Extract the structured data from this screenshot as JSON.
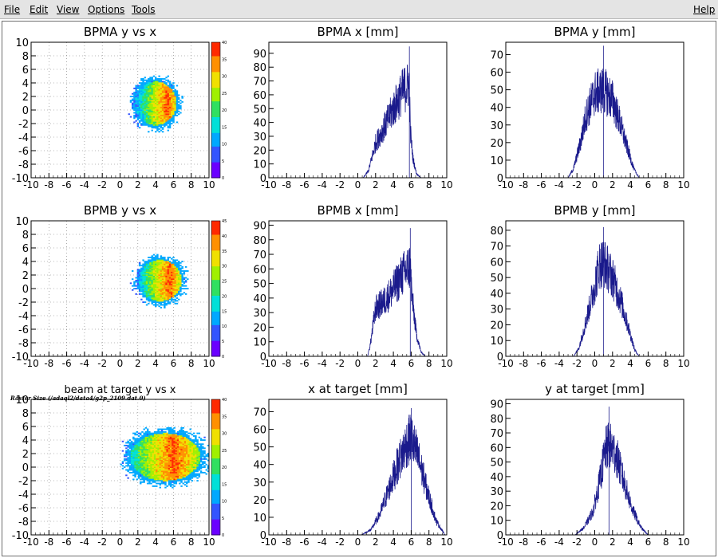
{
  "menu": {
    "items": [
      {
        "id": "file",
        "label": "File"
      },
      {
        "id": "edit",
        "label": "Edit"
      },
      {
        "id": "view",
        "label": "View"
      },
      {
        "id": "options",
        "label": "Options"
      },
      {
        "id": "tools",
        "label": "Tools"
      }
    ],
    "help": "Help"
  },
  "caption": "Raster Size (/adaql2/data4/g2p_2109.dat.0)",
  "colors": {
    "hist_line": "#1a1a8c",
    "palette": [
      "#6a00ff",
      "#3355ff",
      "#00a8ff",
      "#00e0d8",
      "#30e060",
      "#a0f000",
      "#f0e000",
      "#ff9000",
      "#ff2a00"
    ]
  },
  "chart_data": [
    {
      "id": "bpma-yx",
      "type": "heatmap",
      "title": "BPMA y vs x",
      "xlim": [
        -10,
        10
      ],
      "ylim": [
        -10,
        10
      ],
      "xticks": [
        -10,
        -8,
        -6,
        -4,
        -2,
        0,
        2,
        4,
        6,
        8,
        10
      ],
      "yticks": [
        -10,
        -8,
        -6,
        -4,
        -2,
        0,
        2,
        4,
        6,
        8,
        10
      ],
      "grid": true,
      "blob": {
        "x_center": 3.9,
        "y_center": 0.9,
        "x_halfwidth": 2.6,
        "y_halfwidth": 3.6,
        "peak_x": 5.3
      },
      "zlim": [
        0,
        40
      ],
      "zticks": [
        0,
        5,
        10,
        15,
        20,
        25,
        30,
        35,
        40
      ]
    },
    {
      "id": "bpma-x",
      "type": "area",
      "title": "BPMA x [mm]",
      "xlim": [
        -10,
        10
      ],
      "ylim": [
        0,
        98
      ],
      "xticks": [
        -10,
        -8,
        -6,
        -4,
        -2,
        0,
        2,
        4,
        6,
        8,
        10
      ],
      "yticks": [
        0,
        10,
        20,
        30,
        40,
        50,
        60,
        70,
        80,
        90
      ],
      "grid": false,
      "x": [
        0.6,
        1.2,
        2,
        3,
        4,
        5,
        5.8,
        5.9,
        6.2,
        6.6,
        7.1
      ],
      "y": [
        0,
        5,
        25,
        37,
        50,
        62,
        68,
        34,
        14,
        3,
        0
      ],
      "peak": 95
    },
    {
      "id": "bpma-y",
      "type": "area",
      "title": "BPMA y [mm]",
      "xlim": [
        -10,
        10
      ],
      "ylim": [
        0,
        77
      ],
      "xticks": [
        -10,
        -8,
        -6,
        -4,
        -2,
        0,
        2,
        4,
        6,
        8,
        10
      ],
      "yticks": [
        0,
        10,
        20,
        30,
        40,
        50,
        60,
        70
      ],
      "grid": false,
      "x": [
        -3,
        -2.4,
        -1.6,
        -1,
        0,
        1,
        2,
        2.8,
        3.6,
        4.4,
        5
      ],
      "y": [
        0,
        5,
        20,
        35,
        48,
        50,
        44,
        32,
        18,
        5,
        0
      ],
      "peak": 75
    },
    {
      "id": "bpmb-yx",
      "type": "heatmap",
      "title": "BPMB y vs x",
      "xlim": [
        -10,
        10
      ],
      "ylim": [
        -10,
        10
      ],
      "xticks": [
        -10,
        -8,
        -6,
        -4,
        -2,
        0,
        2,
        4,
        6,
        8,
        10
      ],
      "yticks": [
        -10,
        -8,
        -6,
        -4,
        -2,
        0,
        2,
        4,
        6,
        8,
        10
      ],
      "grid": true,
      "blob": {
        "x_center": 4.4,
        "y_center": 1.1,
        "x_halfwidth": 2.7,
        "y_halfwidth": 3.4,
        "peak_x": 5.5
      },
      "zlim": [
        0,
        45
      ],
      "zticks": [
        0,
        5,
        10,
        15,
        20,
        25,
        30,
        35,
        40,
        45
      ]
    },
    {
      "id": "bpmb-x",
      "type": "area",
      "title": "BPMB x [mm]",
      "xlim": [
        -10,
        10
      ],
      "ylim": [
        0,
        93
      ],
      "xticks": [
        -10,
        -8,
        -6,
        -4,
        -2,
        0,
        2,
        4,
        6,
        8,
        10
      ],
      "yticks": [
        0,
        10,
        20,
        30,
        40,
        50,
        60,
        70,
        80,
        90
      ],
      "grid": false,
      "x": [
        1.1,
        1.4,
        2,
        3,
        4,
        5,
        5.9,
        6.1,
        6.6,
        7.1,
        7.6
      ],
      "y": [
        0,
        8,
        33,
        38,
        46,
        56,
        62,
        40,
        15,
        3,
        0
      ],
      "peak": 88
    },
    {
      "id": "bpmb-y",
      "type": "area",
      "title": "BPMB y [mm]",
      "xlim": [
        -10,
        10
      ],
      "ylim": [
        0,
        86
      ],
      "xticks": [
        -10,
        -8,
        -6,
        -4,
        -2,
        0,
        2,
        4,
        6,
        8,
        10
      ],
      "yticks": [
        0,
        10,
        20,
        30,
        40,
        50,
        60,
        70,
        80
      ],
      "grid": false,
      "x": [
        -2.4,
        -1.8,
        -1,
        0,
        0.5,
        1,
        2,
        3,
        3.8,
        4.5,
        5
      ],
      "y": [
        0,
        5,
        22,
        45,
        58,
        60,
        50,
        34,
        18,
        4,
        0
      ],
      "peak": 82
    },
    {
      "id": "target-yx",
      "type": "heatmap",
      "title": "beam at target y vs x",
      "xlim": [
        -10,
        10
      ],
      "ylim": [
        -10,
        10
      ],
      "xticks": [
        -10,
        -8,
        -6,
        -4,
        -2,
        0,
        2,
        4,
        6,
        8,
        10
      ],
      "yticks": [
        -10,
        -8,
        -6,
        -4,
        -2,
        0,
        2,
        4,
        6,
        8,
        10
      ],
      "grid": true,
      "blob": {
        "x_center": 5.0,
        "y_center": 1.4,
        "x_halfwidth": 4.4,
        "y_halfwidth": 3.9,
        "peak_x": 6.0
      },
      "zlim": [
        0,
        40
      ],
      "zticks": [
        0,
        5,
        10,
        15,
        20,
        25,
        30,
        35,
        40
      ]
    },
    {
      "id": "target-x",
      "type": "area",
      "title": "x at target [mm]",
      "xlim": [
        -10,
        10
      ],
      "ylim": [
        0,
        77
      ],
      "xticks": [
        -10,
        -8,
        -6,
        -4,
        -2,
        0,
        2,
        4,
        6,
        8,
        10
      ],
      "yticks": [
        0,
        10,
        20,
        30,
        40,
        50,
        60,
        70
      ],
      "grid": false,
      "x": [
        0.4,
        1.5,
        2.5,
        3.5,
        4.5,
        5.5,
        6,
        6.8,
        7.8,
        8.8,
        9.8
      ],
      "y": [
        0,
        3,
        12,
        26,
        40,
        52,
        55,
        44,
        25,
        8,
        0
      ],
      "peak": 72
    },
    {
      "id": "target-y",
      "type": "area",
      "title": "y at target [mm]",
      "xlim": [
        -10,
        10
      ],
      "ylim": [
        0,
        93
      ],
      "xticks": [
        -10,
        -8,
        -6,
        -4,
        -2,
        0,
        2,
        4,
        6,
        8,
        10
      ],
      "yticks": [
        0,
        10,
        20,
        30,
        40,
        50,
        60,
        70,
        80,
        90
      ],
      "grid": false,
      "x": [
        -2.2,
        -1.2,
        -0.2,
        0.6,
        1.2,
        1.6,
        2.4,
        3.2,
        4.2,
        5.2,
        6
      ],
      "y": [
        0,
        5,
        16,
        38,
        58,
        62,
        55,
        38,
        18,
        5,
        0
      ],
      "peak": 88
    }
  ]
}
